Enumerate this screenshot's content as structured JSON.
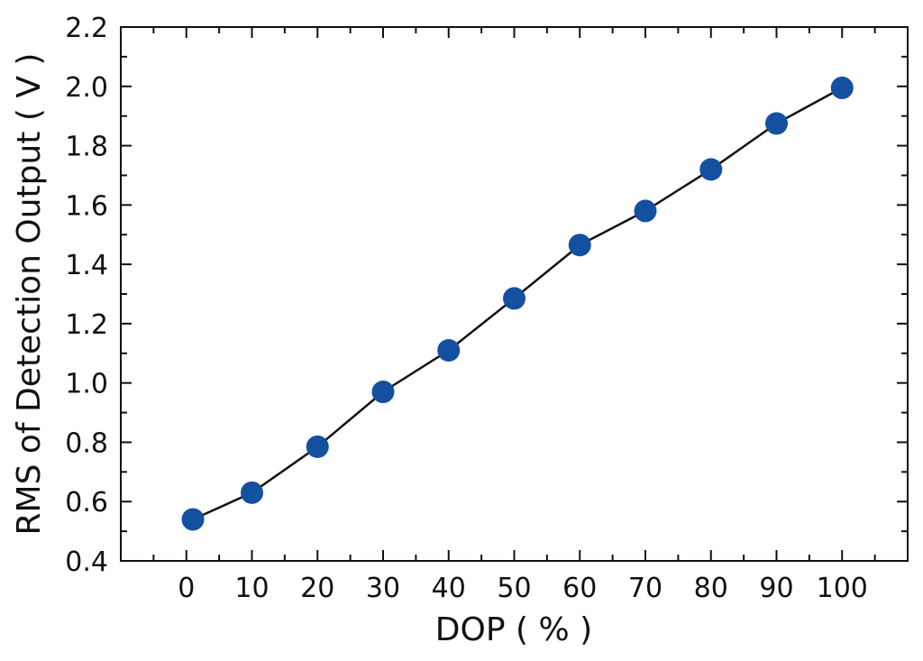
{
  "chart_data": {
    "type": "line",
    "title": "",
    "xlabel": "DOP  ( % )",
    "ylabel": "RMS of Detection Output  ( V )",
    "xlim": [
      -10,
      110
    ],
    "ylim": [
      0.4,
      2.2
    ],
    "xticks": [
      0,
      10,
      20,
      30,
      40,
      50,
      60,
      70,
      80,
      90,
      100
    ],
    "yticks": [
      0.4,
      0.6,
      0.8,
      1.0,
      1.2,
      1.4,
      1.6,
      1.8,
      2.0,
      2.2
    ],
    "xtick_labels": [
      "0",
      "10",
      "20",
      "30",
      "40",
      "50",
      "60",
      "70",
      "80",
      "90",
      "100"
    ],
    "ytick_labels": [
      "0.4",
      "0.6",
      "0.8",
      "1.0",
      "1.2",
      "1.4",
      "1.6",
      "1.8",
      "2.0",
      "2.2"
    ],
    "grid": false,
    "series": [
      {
        "color": "#1450a0",
        "line_color": "#111111",
        "marker": "circle",
        "x": [
          1,
          10,
          20,
          30,
          40,
          50,
          60,
          70,
          80,
          90,
          100
        ],
        "y": [
          0.54,
          0.63,
          0.785,
          0.97,
          1.11,
          1.285,
          1.465,
          1.58,
          1.72,
          1.875,
          1.995
        ]
      }
    ]
  }
}
